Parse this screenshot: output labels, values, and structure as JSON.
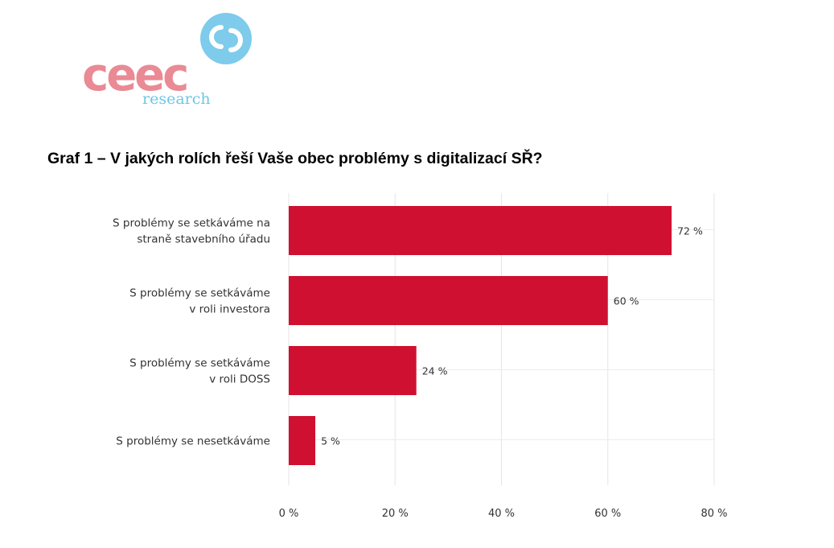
{
  "logo": {
    "brand": "ceec",
    "sub": "research",
    "brand_color": "#e98a94",
    "accent_color": "#6ec6e6"
  },
  "chart_data": {
    "type": "bar",
    "orientation": "horizontal",
    "title": "Graf 1 – V jakých rolích řeší Vaše obec problémy s digitalizací SŘ?",
    "categories": [
      [
        "S problémy se setkáváme na",
        "straně stavebního úřadu"
      ],
      [
        "S problémy se setkáváme",
        "v roli investora"
      ],
      [
        "S problémy se setkáváme",
        "v roli DOSS"
      ],
      [
        "S problémy se nesetkáváme"
      ]
    ],
    "values": [
      72,
      60,
      24,
      5
    ],
    "value_labels": [
      "72 %",
      "60 %",
      "24 %",
      "5 %"
    ],
    "xlim": [
      0,
      80
    ],
    "x_ticks": [
      0,
      20,
      40,
      60,
      80
    ],
    "x_tick_labels": [
      "0 %",
      "20 %",
      "40 %",
      "60 %",
      "80 %"
    ],
    "grid": true,
    "bar_color": "#d01030"
  }
}
